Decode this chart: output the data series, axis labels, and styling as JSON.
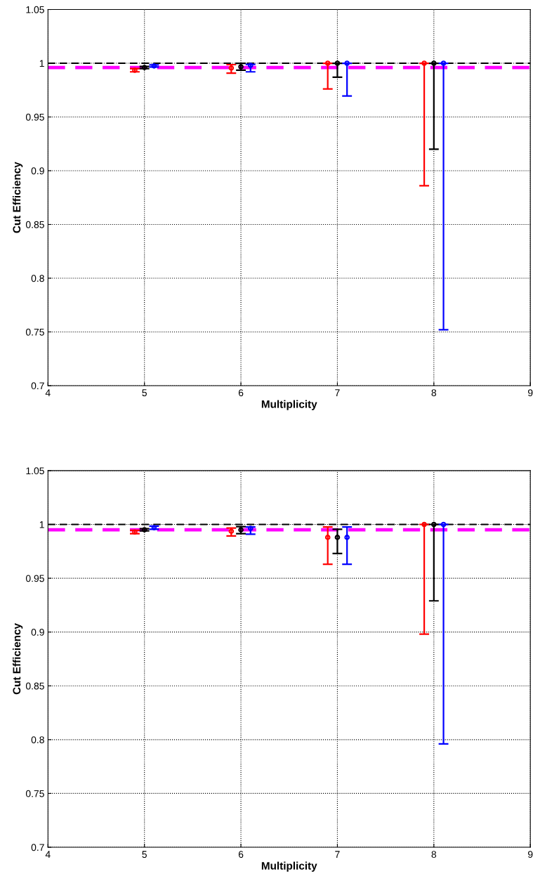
{
  "chart_data": [
    {
      "type": "scatter",
      "xlabel": "Multiplicity",
      "ylabel": "Cut Efficiency",
      "xlim": [
        4,
        9
      ],
      "xticks": [
        4,
        5,
        6,
        7,
        8,
        9
      ],
      "ylim": [
        0.7,
        1.05
      ],
      "yticks": [
        0.7,
        0.75,
        0.8,
        0.85,
        0.9,
        0.95,
        1,
        1.05
      ],
      "grid": true,
      "marker": "circle",
      "ref_lines": [
        {
          "axis": "y",
          "value": 1,
          "color": "#000000",
          "line_style": "dashed"
        },
        {
          "axis": "y",
          "value": 0.996,
          "color": "#ff00ff",
          "line_style": "dashed"
        }
      ],
      "series": [
        {
          "color": "#ff0000",
          "x": [
            4.9,
            5.9,
            6.9,
            7.9
          ],
          "values": [
            0.9935,
            0.9956,
            1,
            1
          ],
          "errors": [
            [
              0.992,
              0.995
            ],
            [
              0.9908,
              0.9987
            ],
            [
              0.976,
              1
            ],
            [
              0.886,
              1
            ]
          ]
        },
        {
          "color": "#000000",
          "x": [
            5,
            6,
            7,
            8
          ],
          "values": [
            0.996,
            0.9967,
            1,
            1
          ],
          "errors": [
            [
              0.995,
              0.997
            ],
            [
              0.9935,
              1
            ],
            [
              0.987,
              1
            ],
            [
              0.92,
              1
            ]
          ]
        },
        {
          "color": "#0000ff",
          "x": [
            5.1,
            6.1,
            7.1,
            8.1
          ],
          "values": [
            0.9975,
            0.998,
            1,
            1
          ],
          "errors": [
            [
              0.9965,
              0.9985
            ],
            [
              0.992,
              0.999
            ],
            [
              0.9695,
              1
            ],
            [
              0.752,
              1
            ]
          ]
        }
      ]
    },
    {
      "type": "scatter",
      "xlabel": "Multiplicity",
      "ylabel": "Cut Efficiency",
      "xlim": [
        4,
        9
      ],
      "xticks": [
        4,
        5,
        6,
        7,
        8,
        9
      ],
      "ylim": [
        0.7,
        1.05
      ],
      "yticks": [
        0.7,
        0.75,
        0.8,
        0.85,
        0.9,
        0.95,
        1,
        1.05
      ],
      "grid": true,
      "marker": "circle",
      "ref_lines": [
        {
          "axis": "y",
          "value": 1,
          "color": "#000000",
          "line_style": "dashed"
        },
        {
          "axis": "y",
          "value": 0.995,
          "color": "#ff00ff",
          "line_style": "dashed"
        }
      ],
      "series": [
        {
          "color": "#ff0000",
          "x": [
            4.9,
            5.9,
            6.9,
            7.9
          ],
          "values": [
            0.993,
            0.9937,
            0.988,
            1
          ],
          "errors": [
            [
              0.9915,
              0.9945
            ],
            [
              0.9893,
              0.9967
            ],
            [
              0.963,
              0.9976
            ],
            [
              0.898,
              1
            ]
          ]
        },
        {
          "color": "#000000",
          "x": [
            5,
            6,
            7,
            8
          ],
          "values": [
            0.995,
            0.995,
            0.988,
            1
          ],
          "errors": [
            [
              0.994,
              0.996
            ],
            [
              0.9915,
              0.998
            ],
            [
              0.973,
              0.9955
            ],
            [
              0.929,
              1
            ]
          ]
        },
        {
          "color": "#0000ff",
          "x": [
            5.1,
            6.1,
            7.1,
            8.1
          ],
          "values": [
            0.997,
            0.9963,
            0.988,
            1
          ],
          "errors": [
            [
              0.9955,
              0.9985
            ],
            [
              0.991,
              0.9976
            ],
            [
              0.963,
              0.9976
            ],
            [
              0.796,
              1
            ]
          ]
        }
      ]
    }
  ]
}
